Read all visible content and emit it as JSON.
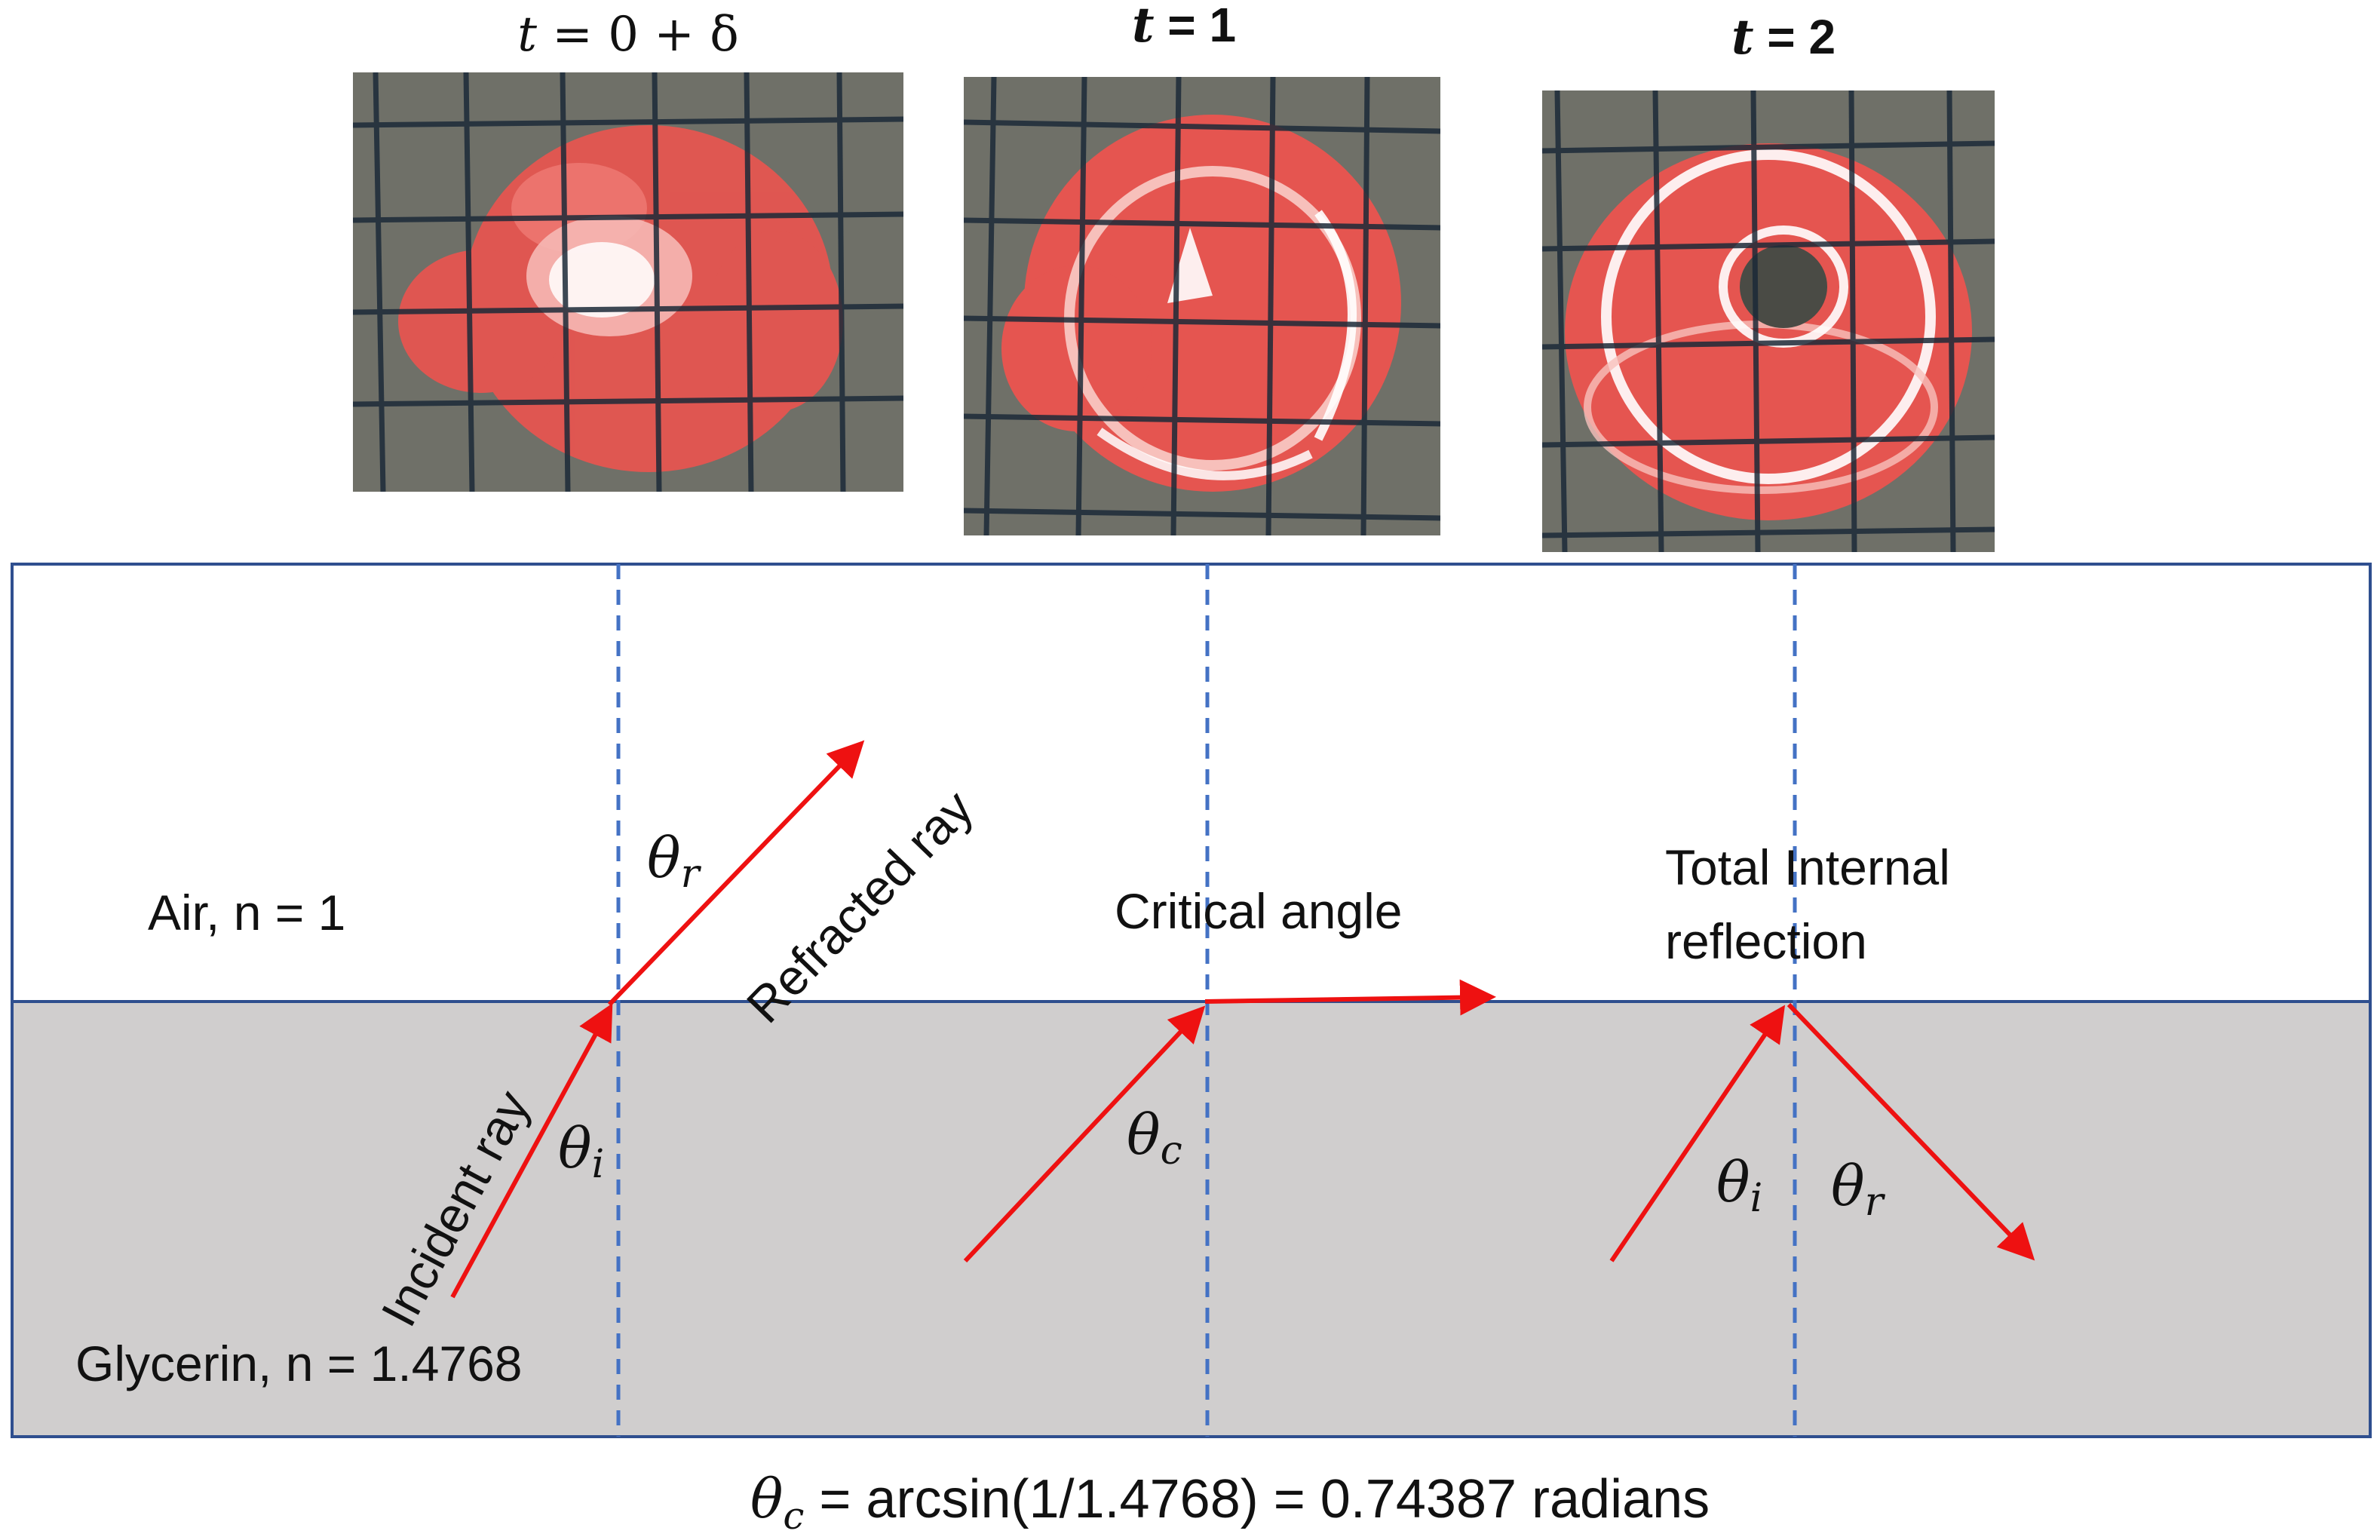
{
  "photos": [
    {
      "label_var": "t",
      "label_rest": " = 0 +  δ",
      "style": "math"
    },
    {
      "label_var": "t",
      "label_rest": " = 1",
      "style": "bold"
    },
    {
      "label_var": "t",
      "label_rest": " = 2",
      "style": "bold"
    }
  ],
  "media": {
    "air": "Air, n = 1",
    "glycerin": "Glycerin, n = 1.4768"
  },
  "rays": {
    "incident": "Incident ray",
    "refracted": "Refracted ray"
  },
  "angles": {
    "theta_r_1": {
      "sym": "θ",
      "sub": "r"
    },
    "theta_i_1": {
      "sym": "θ",
      "sub": "i"
    },
    "theta_c": {
      "sym": "θ",
      "sub": "c"
    },
    "theta_i_2": {
      "sym": "θ",
      "sub": "i"
    },
    "theta_r_2": {
      "sym": "θ",
      "sub": "r"
    }
  },
  "cases": {
    "critical": "Critical angle",
    "tir_line1": "Total Internal",
    "tir_line2": "reflection"
  },
  "formula": {
    "sym": "θ",
    "sub": "c",
    "rest": " = arcsin(1/1.4768) = 0.74387 radians"
  },
  "colors": {
    "ray": "#ee1111",
    "normal": "#4472c4",
    "box_border": "#2f4f8f",
    "glycerin_fill": "#d0cece",
    "photo_grid": "#1c2a38",
    "spot": "#e8544f"
  }
}
